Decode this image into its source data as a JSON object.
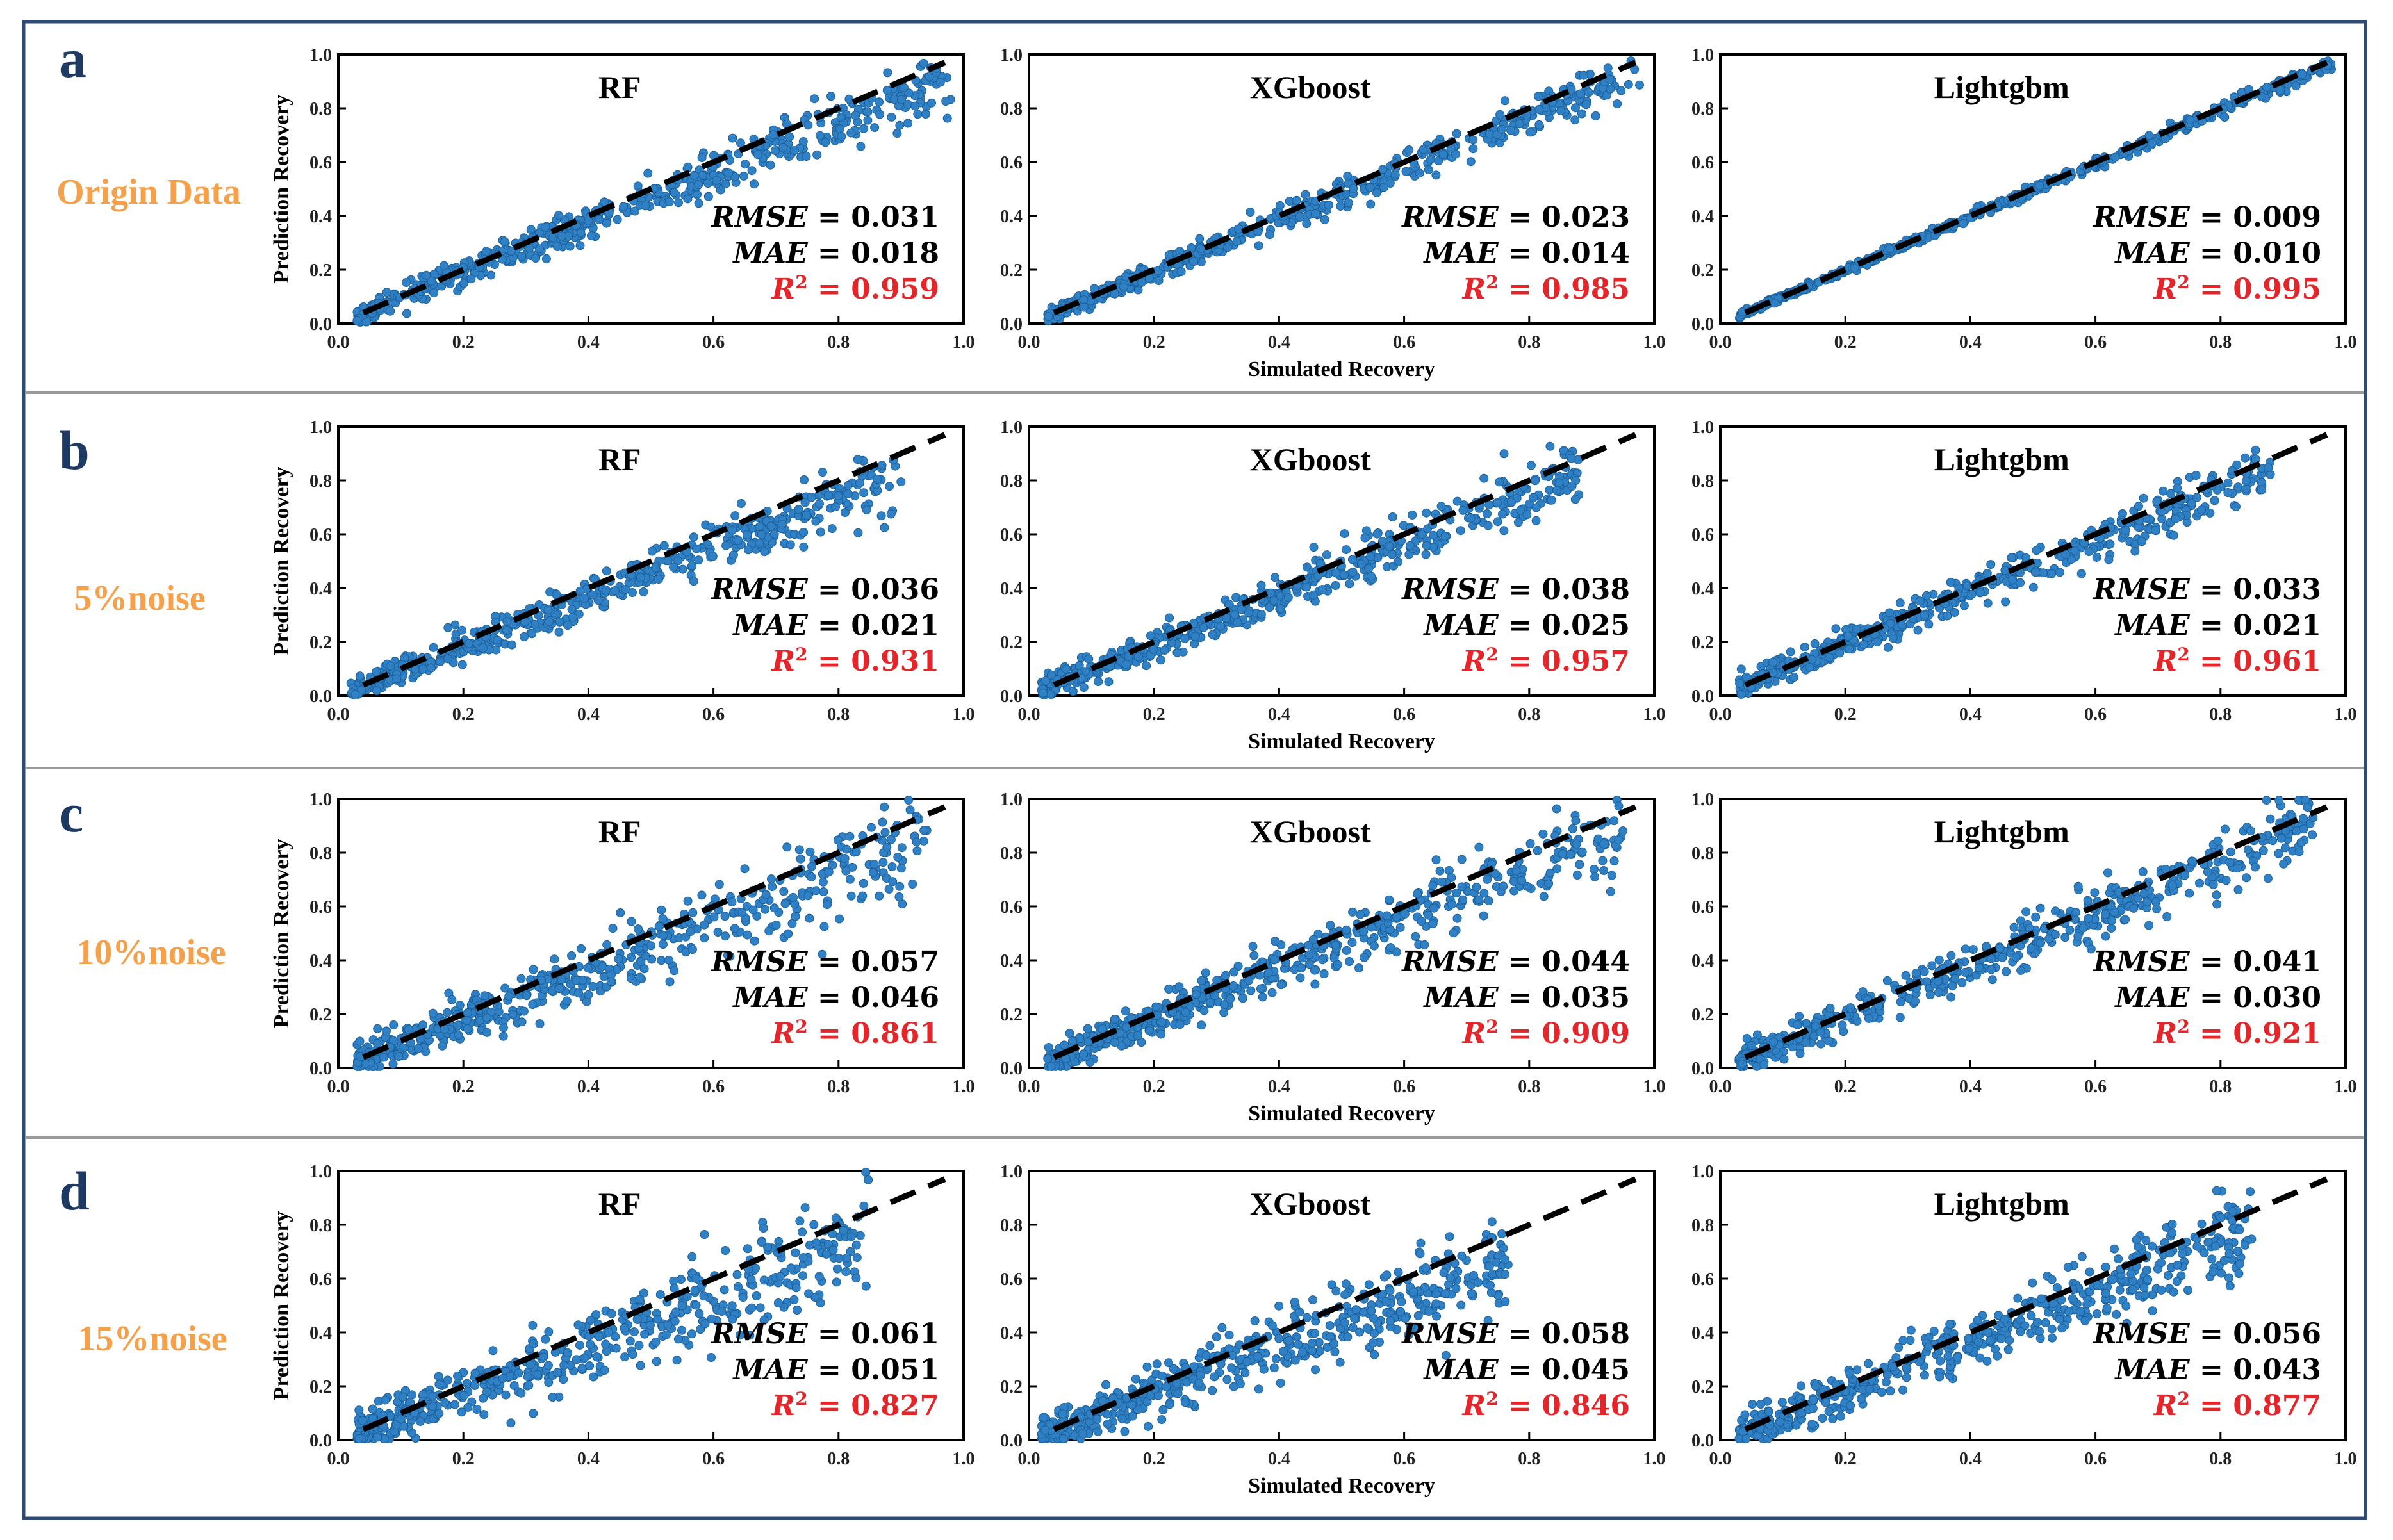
{
  "figure": {
    "row_letters": [
      "a",
      "b",
      "c",
      "d"
    ],
    "row_labels": [
      "Origin Data",
      "5%noise",
      "10%noise",
      "15%noise"
    ],
    "models": [
      "RF",
      "XGboost",
      "Lightgbm"
    ]
  },
  "colors": {
    "frame": "#2e4a78",
    "divider": "#9a9a9a",
    "marker": "#2f80c4",
    "marker_edge": "#1b5f99",
    "r2": "#e4262a",
    "row_label": "#f5a04a",
    "row_letter": "#1e3a63"
  },
  "chart_data": {
    "type": "scatter",
    "grid": false,
    "xlabel": "Simulated Recovery",
    "ylabel": "Prediction Recovery",
    "xlim": [
      0,
      1
    ],
    "ylim": [
      0,
      1
    ],
    "ticks": [
      "0.0",
      "0.2",
      "0.4",
      "0.6",
      "0.8",
      "1.0"
    ],
    "reference_line": {
      "style": "dashed",
      "from": [
        0.04,
        0.04
      ],
      "to": [
        0.97,
        0.97
      ]
    },
    "points_per_panel": 520,
    "panels": [
      {
        "row": 0,
        "col": 0,
        "model": "RF",
        "rmse": "0.031",
        "mae": "0.018",
        "r2": "0.959",
        "x_range": [
          0.03,
          0.98
        ],
        "slope": 0.93,
        "spread": 0.032
      },
      {
        "row": 0,
        "col": 1,
        "model": "XGboost",
        "rmse": "0.023",
        "mae": "0.014",
        "r2": "0.985",
        "x_range": [
          0.03,
          0.98
        ],
        "slope": 0.96,
        "spread": 0.022
      },
      {
        "row": 0,
        "col": 2,
        "model": "Lightgbm",
        "rmse": "0.009",
        "mae": "0.010",
        "r2": "0.995",
        "x_range": [
          0.03,
          0.98
        ],
        "slope": 0.99,
        "spread": 0.008
      },
      {
        "row": 1,
        "col": 0,
        "model": "RF",
        "rmse": "0.036",
        "mae": "0.021",
        "r2": "0.931",
        "x_range": [
          0.02,
          0.9
        ],
        "slope": 0.92,
        "spread": 0.035
      },
      {
        "row": 1,
        "col": 1,
        "model": "XGboost",
        "rmse": "0.038",
        "mae": "0.025",
        "r2": "0.957",
        "x_range": [
          0.02,
          0.88
        ],
        "slope": 0.94,
        "spread": 0.036
      },
      {
        "row": 1,
        "col": 2,
        "model": "Lightgbm",
        "rmse": "0.033",
        "mae": "0.021",
        "r2": "0.961",
        "x_range": [
          0.03,
          0.88
        ],
        "slope": 0.96,
        "spread": 0.03
      },
      {
        "row": 2,
        "col": 0,
        "model": "RF",
        "rmse": "0.057",
        "mae": "0.046",
        "r2": "0.861",
        "x_range": [
          0.03,
          0.95
        ],
        "slope": 0.9,
        "spread": 0.05
      },
      {
        "row": 2,
        "col": 1,
        "model": "XGboost",
        "rmse": "0.044",
        "mae": "0.035",
        "r2": "0.909",
        "x_range": [
          0.03,
          0.95
        ],
        "slope": 0.93,
        "spread": 0.042
      },
      {
        "row": 2,
        "col": 2,
        "model": "Lightgbm",
        "rmse": "0.041",
        "mae": "0.030",
        "r2": "0.921",
        "x_range": [
          0.03,
          0.95
        ],
        "slope": 0.95,
        "spread": 0.038
      },
      {
        "row": 3,
        "col": 0,
        "model": "RF",
        "rmse": "0.061",
        "mae": "0.051",
        "r2": "0.827",
        "x_range": [
          0.03,
          0.85
        ],
        "slope": 0.88,
        "spread": 0.058
      },
      {
        "row": 3,
        "col": 1,
        "model": "XGboost",
        "rmse": "0.058",
        "mae": "0.045",
        "r2": "0.846",
        "x_range": [
          0.02,
          0.77
        ],
        "slope": 0.88,
        "spread": 0.055
      },
      {
        "row": 3,
        "col": 2,
        "model": "Lightgbm",
        "rmse": "0.056",
        "mae": "0.043",
        "r2": "0.877",
        "x_range": [
          0.03,
          0.85
        ],
        "slope": 0.92,
        "spread": 0.05
      }
    ]
  }
}
